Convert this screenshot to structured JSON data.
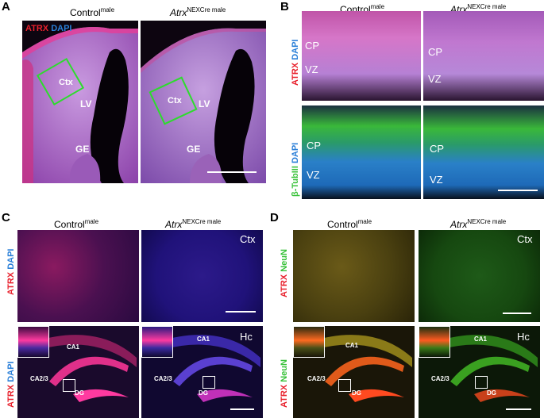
{
  "panels": {
    "A": {
      "letter": "A",
      "stain_red": "ATRX",
      "stain_blue": "DAPI",
      "control": {
        "head": "Control",
        "sup": "male",
        "ctx": "Ctx",
        "lv": "LV",
        "ge": "GE"
      },
      "mutant": {
        "head_italic": "Atrx",
        "sup": "NEXCre male",
        "ctx": "Ctx",
        "lv": "LV",
        "ge": "GE"
      }
    },
    "B": {
      "letter": "B",
      "control_head": "Control",
      "control_sup": "male",
      "mutant_head_italic": "Atrx",
      "mutant_sup": "NEXCre male",
      "row1_red": "ATRX",
      "row1_blue": "DAPI",
      "row2_green": "β-TubIII",
      "row2_blue": "DAPI",
      "cp": "CP",
      "vz": "VZ"
    },
    "C": {
      "letter": "C",
      "control_head": "Control",
      "control_sup": "male",
      "mutant_head_italic": "Atrx",
      "mutant_sup": "NEXCre male",
      "row1_red": "ATRX",
      "row1_blue": "DAPI",
      "row2_red": "ATRX",
      "row2_blue": "DAPI",
      "ctx": "Ctx",
      "hc": "Hc",
      "ca1": "CA1",
      "ca23": "CA2/3",
      "dg": "DG"
    },
    "D": {
      "letter": "D",
      "control_head": "Control",
      "control_sup": "male",
      "mutant_head_italic": "Atrx",
      "mutant_sup": "NEXCre male",
      "row1_red": "ATRX",
      "row1_green": "NeuN",
      "row2_red": "ATRX",
      "row2_green": "NeuN",
      "ctx": "Ctx",
      "hc": "Hc",
      "ca1": "CA1",
      "ca23": "CA2/3",
      "dg": "DG"
    }
  },
  "colors": {
    "red": "#e8202c",
    "blue": "#2a7fd8",
    "green": "#39c23a",
    "box_green": "#2ddc2d"
  }
}
